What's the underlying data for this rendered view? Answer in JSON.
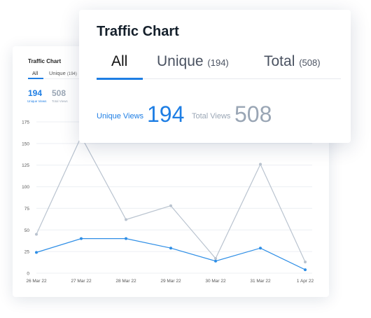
{
  "background_card": {
    "title": "Traffic Chart",
    "tabs": [
      {
        "label": "All",
        "count": ""
      },
      {
        "label": "Unique",
        "count": "(194)"
      }
    ],
    "stats": [
      {
        "value": "194",
        "label": "Unique Views",
        "color": "#1e7ee4"
      },
      {
        "value": "508",
        "label": "Total Views",
        "color": "#9aa6b5"
      }
    ]
  },
  "foreground_card": {
    "title": "Traffic Chart",
    "tabs": [
      {
        "label": "All",
        "count": "",
        "active": true
      },
      {
        "label": "Unique",
        "count": "(194)",
        "active": false
      },
      {
        "label": "Total",
        "count": "(508)",
        "active": false
      }
    ],
    "stats": [
      {
        "label": "Unique Views",
        "value": "194",
        "color": "#1e7ee4"
      },
      {
        "label": "Total Views",
        "value": "508",
        "color": "#9aa6b5"
      }
    ]
  },
  "chart_data": {
    "type": "line",
    "title": "",
    "xlabel": "",
    "ylabel": "",
    "categories": [
      "26 Mar 22",
      "27 Mar 22",
      "28 Mar 22",
      "29 Mar 22",
      "30 Mar 22",
      "31 Mar 22",
      "1 Apr 22"
    ],
    "yticks": [
      0,
      25,
      50,
      75,
      100,
      125,
      150,
      175
    ],
    "ylim": [
      0,
      175
    ],
    "grid": true,
    "series": [
      {
        "values": [
          45,
          158,
          62,
          78,
          17,
          126,
          13
        ],
        "color": "#b9c3cf"
      },
      {
        "values": [
          24,
          40,
          40,
          29,
          14,
          29,
          4
        ],
        "color": "#2e8ee6"
      }
    ]
  }
}
